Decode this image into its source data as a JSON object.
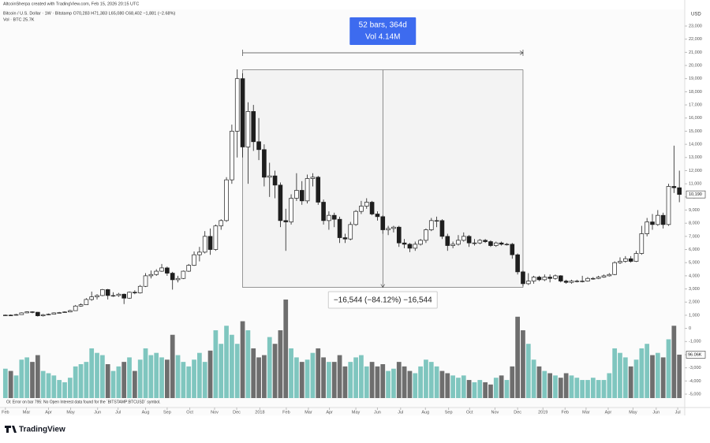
{
  "chart_data": {
    "type": "candlestick",
    "credit": "AltcoinSherpa created with TradingView.com, Feb 15, 2026 20:15 UTC",
    "title": "Bitcoin / U.S. Dollar · 1W · Bitstamp  O70,283 H71,383 L65,080 C68,402 −1,881 (−2.68%)",
    "volume_title": "Vol · BTC  25.7K",
    "currency": "USD",
    "footer": "Oi: Error on bar 795: No Open Interest data found for the `BITSTAMP:BTCUSD` symbol.",
    "brand": "TradingView",
    "up_color": "#ffffff",
    "down_color": "#1e1e1e",
    "volume_up_color": "#7fc6bf",
    "volume_down_color": "#6e6e6e",
    "ylim": [
      -5600,
      24260
    ],
    "yticks": [
      {
        "value": -5000,
        "label": "-5,000"
      },
      {
        "value": -4000,
        "label": "-4,000"
      },
      {
        "value": -3000,
        "label": "-3,000"
      },
      {
        "value": -2000,
        "label": "-2,000"
      },
      {
        "value": -1000,
        "label": "-1,000"
      },
      0,
      {
        "value": 1000,
        "label": "1,000"
      },
      {
        "value": 2000,
        "label": "2,000"
      },
      {
        "value": 3000,
        "label": "3,000"
      },
      {
        "value": 4000,
        "label": "4,000"
      },
      {
        "value": 5000,
        "label": "5,000"
      },
      {
        "value": 6000,
        "label": "6,000"
      },
      {
        "value": 7000,
        "label": "7,000"
      },
      {
        "value": 8000,
        "label": "8,000"
      },
      {
        "value": 9000,
        "label": "9,000"
      },
      {
        "value": 10000,
        "label": "10,000"
      },
      {
        "value": 11000,
        "label": "11,000"
      },
      {
        "value": 12000,
        "label": "12,000"
      },
      {
        "value": 13000,
        "label": "13,000"
      },
      {
        "value": 14000,
        "label": "14,000"
      },
      {
        "value": 15000,
        "label": "15,000"
      },
      {
        "value": 16000,
        "label": "16,000"
      },
      {
        "value": 17000,
        "label": "17,000"
      },
      {
        "value": 18000,
        "label": "18,000"
      },
      {
        "value": 19000,
        "label": "19,000"
      },
      {
        "value": 20000,
        "label": "20,000"
      },
      {
        "value": 21000,
        "label": "21,000"
      },
      {
        "value": 22000,
        "label": "22,000"
      },
      {
        "value": 23000,
        "label": "23,000"
      }
    ],
    "xlim": [
      -1,
      126
    ],
    "xticks": [
      {
        "value": 0,
        "label": "Feb"
      },
      {
        "value": 3.9,
        "label": "Mar"
      },
      {
        "value": 8,
        "label": "Apr"
      },
      {
        "value": 12.1,
        "label": "May"
      },
      {
        "value": 17.1,
        "label": "Jun"
      },
      {
        "value": 20.9,
        "label": "Jul"
      },
      {
        "value": 26,
        "label": "Aug"
      },
      {
        "value": 30,
        "label": "Sep"
      },
      {
        "value": 34.2,
        "label": "Oct"
      },
      {
        "value": 38.8,
        "label": "Nov"
      },
      {
        "value": 42.9,
        "label": "Dec"
      },
      {
        "value": 47.2,
        "label": "2018"
      },
      {
        "value": 52.1,
        "label": "Feb"
      },
      {
        "value": 56.2,
        "label": "Mar"
      },
      {
        "value": 60.1,
        "label": "Apr"
      },
      {
        "value": 65,
        "label": "May"
      },
      {
        "value": 69,
        "label": "Jun"
      },
      {
        "value": 73.3,
        "label": "Jul"
      },
      {
        "value": 77.9,
        "label": "Aug"
      },
      {
        "value": 82.2,
        "label": "Sep"
      },
      {
        "value": 86.1,
        "label": "Oct"
      },
      {
        "value": 90.8,
        "label": "Nov"
      },
      {
        "value": 95,
        "label": "Dec"
      },
      {
        "value": 99.7,
        "label": "2019"
      },
      {
        "value": 103.8,
        "label": "Feb"
      },
      {
        "value": 107.7,
        "label": "Mar"
      },
      {
        "value": 111.8,
        "label": "Apr"
      },
      {
        "value": 116.4,
        "label": "May"
      },
      {
        "value": 120.7,
        "label": "Jun"
      },
      {
        "value": 124.7,
        "label": "Jul"
      }
    ],
    "ohlc": [
      [
        980,
        1050,
        960,
        1010
      ],
      [
        1010,
        1060,
        950,
        1000
      ],
      [
        1000,
        1100,
        980,
        1050
      ],
      [
        1050,
        1220,
        1040,
        1180
      ],
      [
        1180,
        1300,
        1150,
        1260
      ],
      [
        1260,
        1300,
        1150,
        1230
      ],
      [
        1230,
        1250,
        900,
        960
      ],
      [
        960,
        1100,
        900,
        1040
      ],
      [
        1040,
        1130,
        1000,
        1080
      ],
      [
        1080,
        1220,
        1060,
        1180
      ],
      [
        1180,
        1250,
        1150,
        1200
      ],
      [
        1200,
        1300,
        1180,
        1250
      ],
      [
        1250,
        1420,
        1230,
        1350
      ],
      [
        1350,
        1780,
        1340,
        1700
      ],
      [
        1700,
        1900,
        1650,
        1800
      ],
      [
        1800,
        2300,
        1780,
        2200
      ],
      [
        2200,
        2800,
        2100,
        2400
      ],
      [
        2400,
        2600,
        2200,
        2500
      ],
      [
        2500,
        3000,
        2450,
        2950
      ],
      [
        2950,
        3000,
        2200,
        2500
      ],
      [
        2500,
        2750,
        2400,
        2500
      ],
      [
        2500,
        2700,
        2400,
        2600
      ],
      [
        2600,
        2650,
        1850,
        2300
      ],
      [
        2300,
        2800,
        2250,
        2750
      ],
      [
        2750,
        2900,
        2600,
        2700
      ],
      [
        2700,
        3300,
        2650,
        3200
      ],
      [
        3200,
        4200,
        3150,
        4000
      ],
      [
        4000,
        4400,
        3800,
        4100
      ],
      [
        4100,
        4500,
        4000,
        4350
      ],
      [
        4350,
        4900,
        4300,
        4600
      ],
      [
        4600,
        4700,
        4000,
        4200
      ],
      [
        4200,
        4300,
        2950,
        3700
      ],
      [
        3700,
        4000,
        3500,
        3800
      ],
      [
        3800,
        4400,
        3750,
        4350
      ],
      [
        4350,
        4900,
        4300,
        4800
      ],
      [
        4800,
        5850,
        4750,
        5600
      ],
      [
        5600,
        6200,
        5100,
        5800
      ],
      [
        5800,
        7400,
        5700,
        7000
      ],
      [
        7000,
        7600,
        5600,
        6000
      ],
      [
        6000,
        7900,
        5900,
        7800
      ],
      [
        7800,
        8300,
        7500,
        8200
      ],
      [
        8200,
        11500,
        8100,
        11300
      ],
      [
        11300,
        15500,
        11000,
        15000
      ],
      [
        15000,
        19700,
        13000,
        19000
      ],
      [
        19000,
        19400,
        13000,
        13800
      ],
      [
        13800,
        17200,
        11000,
        16500
      ],
      [
        16500,
        17000,
        13500,
        14200
      ],
      [
        14200,
        16000,
        12800,
        13600
      ],
      [
        13600,
        14000,
        10800,
        11500
      ],
      [
        11500,
        12600,
        10000,
        11600
      ],
      [
        11600,
        12000,
        9900,
        10900
      ],
      [
        10900,
        11100,
        7700,
        8200
      ],
      [
        8200,
        9100,
        5900,
        8100
      ],
      [
        8100,
        10200,
        7900,
        9900
      ],
      [
        9900,
        11800,
        9700,
        10500
      ],
      [
        10500,
        11200,
        9400,
        9700
      ],
      [
        9700,
        11700,
        9500,
        11400
      ],
      [
        11400,
        11800,
        10800,
        11500
      ],
      [
        11500,
        11600,
        9400,
        9600
      ],
      [
        9600,
        9800,
        7900,
        8200
      ],
      [
        8200,
        8900,
        7500,
        8600
      ],
      [
        8600,
        8800,
        7700,
        8300
      ],
      [
        8300,
        8500,
        6500,
        6900
      ],
      [
        6900,
        7200,
        6500,
        6800
      ],
      [
        6800,
        8100,
        6700,
        7900
      ],
      [
        7900,
        9000,
        7800,
        8900
      ],
      [
        8900,
        9700,
        8700,
        9300
      ],
      [
        9300,
        9900,
        9100,
        9600
      ],
      [
        9600,
        9700,
        8600,
        8700
      ],
      [
        8700,
        8900,
        8200,
        8500
      ],
      [
        8500,
        8600,
        7200,
        7500
      ],
      [
        7500,
        7800,
        7100,
        7600
      ],
      [
        7600,
        7800,
        7300,
        7700
      ],
      [
        7700,
        7800,
        6200,
        6500
      ],
      [
        6500,
        6800,
        6100,
        6400
      ],
      [
        6400,
        6500,
        5800,
        6100
      ],
      [
        6100,
        6600,
        5900,
        6400
      ],
      [
        6400,
        6800,
        6300,
        6700
      ],
      [
        6700,
        7600,
        6500,
        7500
      ],
      [
        7500,
        8400,
        7400,
        8200
      ],
      [
        8200,
        8500,
        7700,
        8200
      ],
      [
        8200,
        8300,
        6800,
        7000
      ],
      [
        7000,
        7200,
        5900,
        6300
      ],
      [
        6300,
        6600,
        6100,
        6400
      ],
      [
        6400,
        7100,
        6300,
        6700
      ],
      [
        6700,
        7300,
        6600,
        7000
      ],
      [
        7000,
        7100,
        6200,
        6500
      ],
      [
        6500,
        6800,
        6300,
        6500
      ],
      [
        6500,
        6800,
        6400,
        6700
      ],
      [
        6700,
        6800,
        6500,
        6600
      ],
      [
        6600,
        6700,
        6200,
        6300
      ],
      [
        6300,
        6600,
        6200,
        6500
      ],
      [
        6500,
        6600,
        6300,
        6400
      ],
      [
        6400,
        6500,
        6300,
        6400
      ],
      [
        6400,
        6500,
        5300,
        5600
      ],
      [
        5600,
        5700,
        4100,
        4300
      ],
      [
        4300,
        4400,
        3200,
        3400
      ],
      [
        3400,
        4200,
        3300,
        3600
      ],
      [
        3600,
        4000,
        3400,
        3900
      ],
      [
        3900,
        4000,
        3600,
        3700
      ],
      [
        3700,
        4100,
        3600,
        3900
      ],
      [
        3900,
        4100,
        3500,
        3800
      ],
      [
        3800,
        4100,
        3700,
        4000
      ],
      [
        4000,
        4050,
        3500,
        3600
      ],
      [
        3600,
        3700,
        3400,
        3500
      ],
      [
        3500,
        3700,
        3400,
        3600
      ],
      [
        3600,
        3700,
        3500,
        3600
      ],
      [
        3600,
        4000,
        3500,
        3600
      ],
      [
        3600,
        3900,
        3550,
        3800
      ],
      [
        3800,
        3900,
        3700,
        3800
      ],
      [
        3800,
        4000,
        3750,
        3900
      ],
      [
        3900,
        4100,
        3850,
        4000
      ],
      [
        4000,
        4200,
        3950,
        4100
      ],
      [
        4100,
        5100,
        4050,
        5000
      ],
      [
        5000,
        5400,
        4900,
        5100
      ],
      [
        5100,
        5500,
        5000,
        5300
      ],
      [
        5300,
        5500,
        5000,
        5100
      ],
      [
        5100,
        5900,
        5050,
        5700
      ],
      [
        5700,
        7800,
        5600,
        7200
      ],
      [
        7200,
        8400,
        7000,
        8100
      ],
      [
        8100,
        8700,
        7500,
        7900
      ],
      [
        7900,
        9000,
        7800,
        8600
      ],
      [
        8600,
        8800,
        7600,
        7900
      ],
      [
        7900,
        11000,
        7800,
        10800
      ],
      [
        10800,
        13900,
        10300,
        10700
      ],
      [
        10700,
        12000,
        9600,
        10190
      ]
    ],
    "vlim": [
      0,
      300
    ],
    "volume": [
      65,
      60,
      50,
      85,
      90,
      80,
      95,
      60,
      55,
      50,
      40,
      35,
      45,
      70,
      75,
      80,
      110,
      100,
      95,
      75,
      60,
      70,
      80,
      90,
      60,
      85,
      110,
      95,
      100,
      90,
      85,
      140,
      95,
      80,
      70,
      85,
      100,
      80,
      105,
      150,
      120,
      160,
      140,
      120,
      170,
      150,
      110,
      90,
      95,
      135,
      120,
      150,
      218,
      110,
      90,
      80,
      85,
      100,
      110,
      90,
      80,
      80,
      95,
      70,
      80,
      90,
      95,
      70,
      80,
      70,
      75,
      60,
      65,
      80,
      70,
      60,
      55,
      70,
      85,
      80,
      70,
      60,
      55,
      50,
      45,
      50,
      40,
      35,
      40,
      35,
      30,
      45,
      50,
      40,
      70,
      180,
      150,
      120,
      85,
      70,
      60,
      55,
      50,
      45,
      55,
      50,
      45,
      40,
      40,
      45,
      40,
      40,
      55,
      110,
      100,
      90,
      70,
      85,
      110,
      120,
      95,
      100,
      90,
      130,
      160,
      96.06
    ],
    "last_price": {
      "value": 10190,
      "label": "10,190"
    },
    "last_volume": {
      "value": 96.06,
      "label": "96.06K"
    },
    "measure": {
      "from_index": 44,
      "to_index": 96,
      "from_price": 19666,
      "to_price": 3122,
      "bars_label": "52 bars, 364d",
      "volume_label": "Vol 4.14M",
      "change_label": "−16,544 (−84.12%) −16,544",
      "color": "#3d6bef"
    }
  }
}
